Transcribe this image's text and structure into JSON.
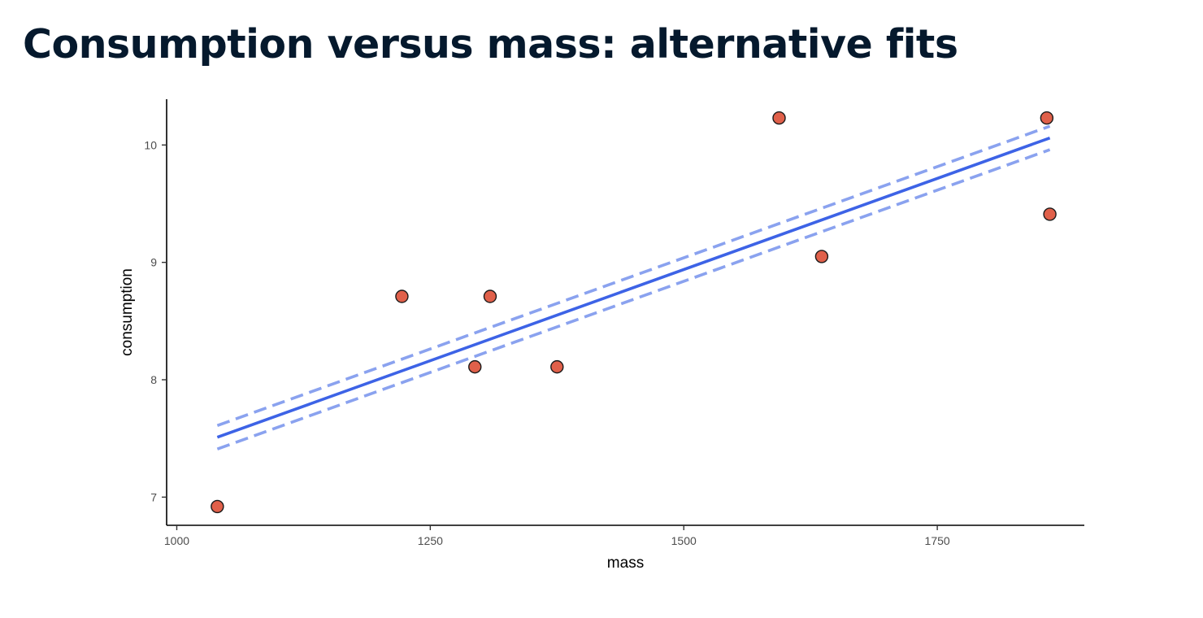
{
  "slide": {
    "title": "Consumption versus mass: alternative fits"
  },
  "chart_data": {
    "type": "scatter",
    "title": "",
    "xlabel": "mass",
    "ylabel": "consumption",
    "xlim": [
      990,
      1895
    ],
    "ylim": [
      6.76,
      10.39
    ],
    "x_ticks": [
      1000,
      1250,
      1500,
      1750
    ],
    "y_ticks": [
      7,
      8,
      9,
      10
    ],
    "grid": false,
    "points": [
      {
        "x": 1040,
        "y": 6.92
      },
      {
        "x": 1222,
        "y": 8.71
      },
      {
        "x": 1294,
        "y": 8.11
      },
      {
        "x": 1309,
        "y": 8.71
      },
      {
        "x": 1375,
        "y": 8.11
      },
      {
        "x": 1594,
        "y": 10.23
      },
      {
        "x": 1636,
        "y": 9.05
      },
      {
        "x": 1858,
        "y": 10.23
      },
      {
        "x": 1861,
        "y": 9.41
      }
    ],
    "lines": [
      {
        "style": "solid",
        "x": [
          1040,
          1861
        ],
        "y": [
          7.51,
          10.06
        ]
      },
      {
        "style": "dashed",
        "x": [
          1040,
          1861
        ],
        "y": [
          7.61,
          10.16
        ]
      },
      {
        "style": "dashed",
        "x": [
          1040,
          1861
        ],
        "y": [
          7.41,
          9.96
        ]
      }
    ],
    "colors": {
      "point_fill": "#e0604a",
      "point_stroke": "#1a1a1a",
      "solid_line": "#3d63e6",
      "dashed_line": "#8aa2ef"
    }
  }
}
